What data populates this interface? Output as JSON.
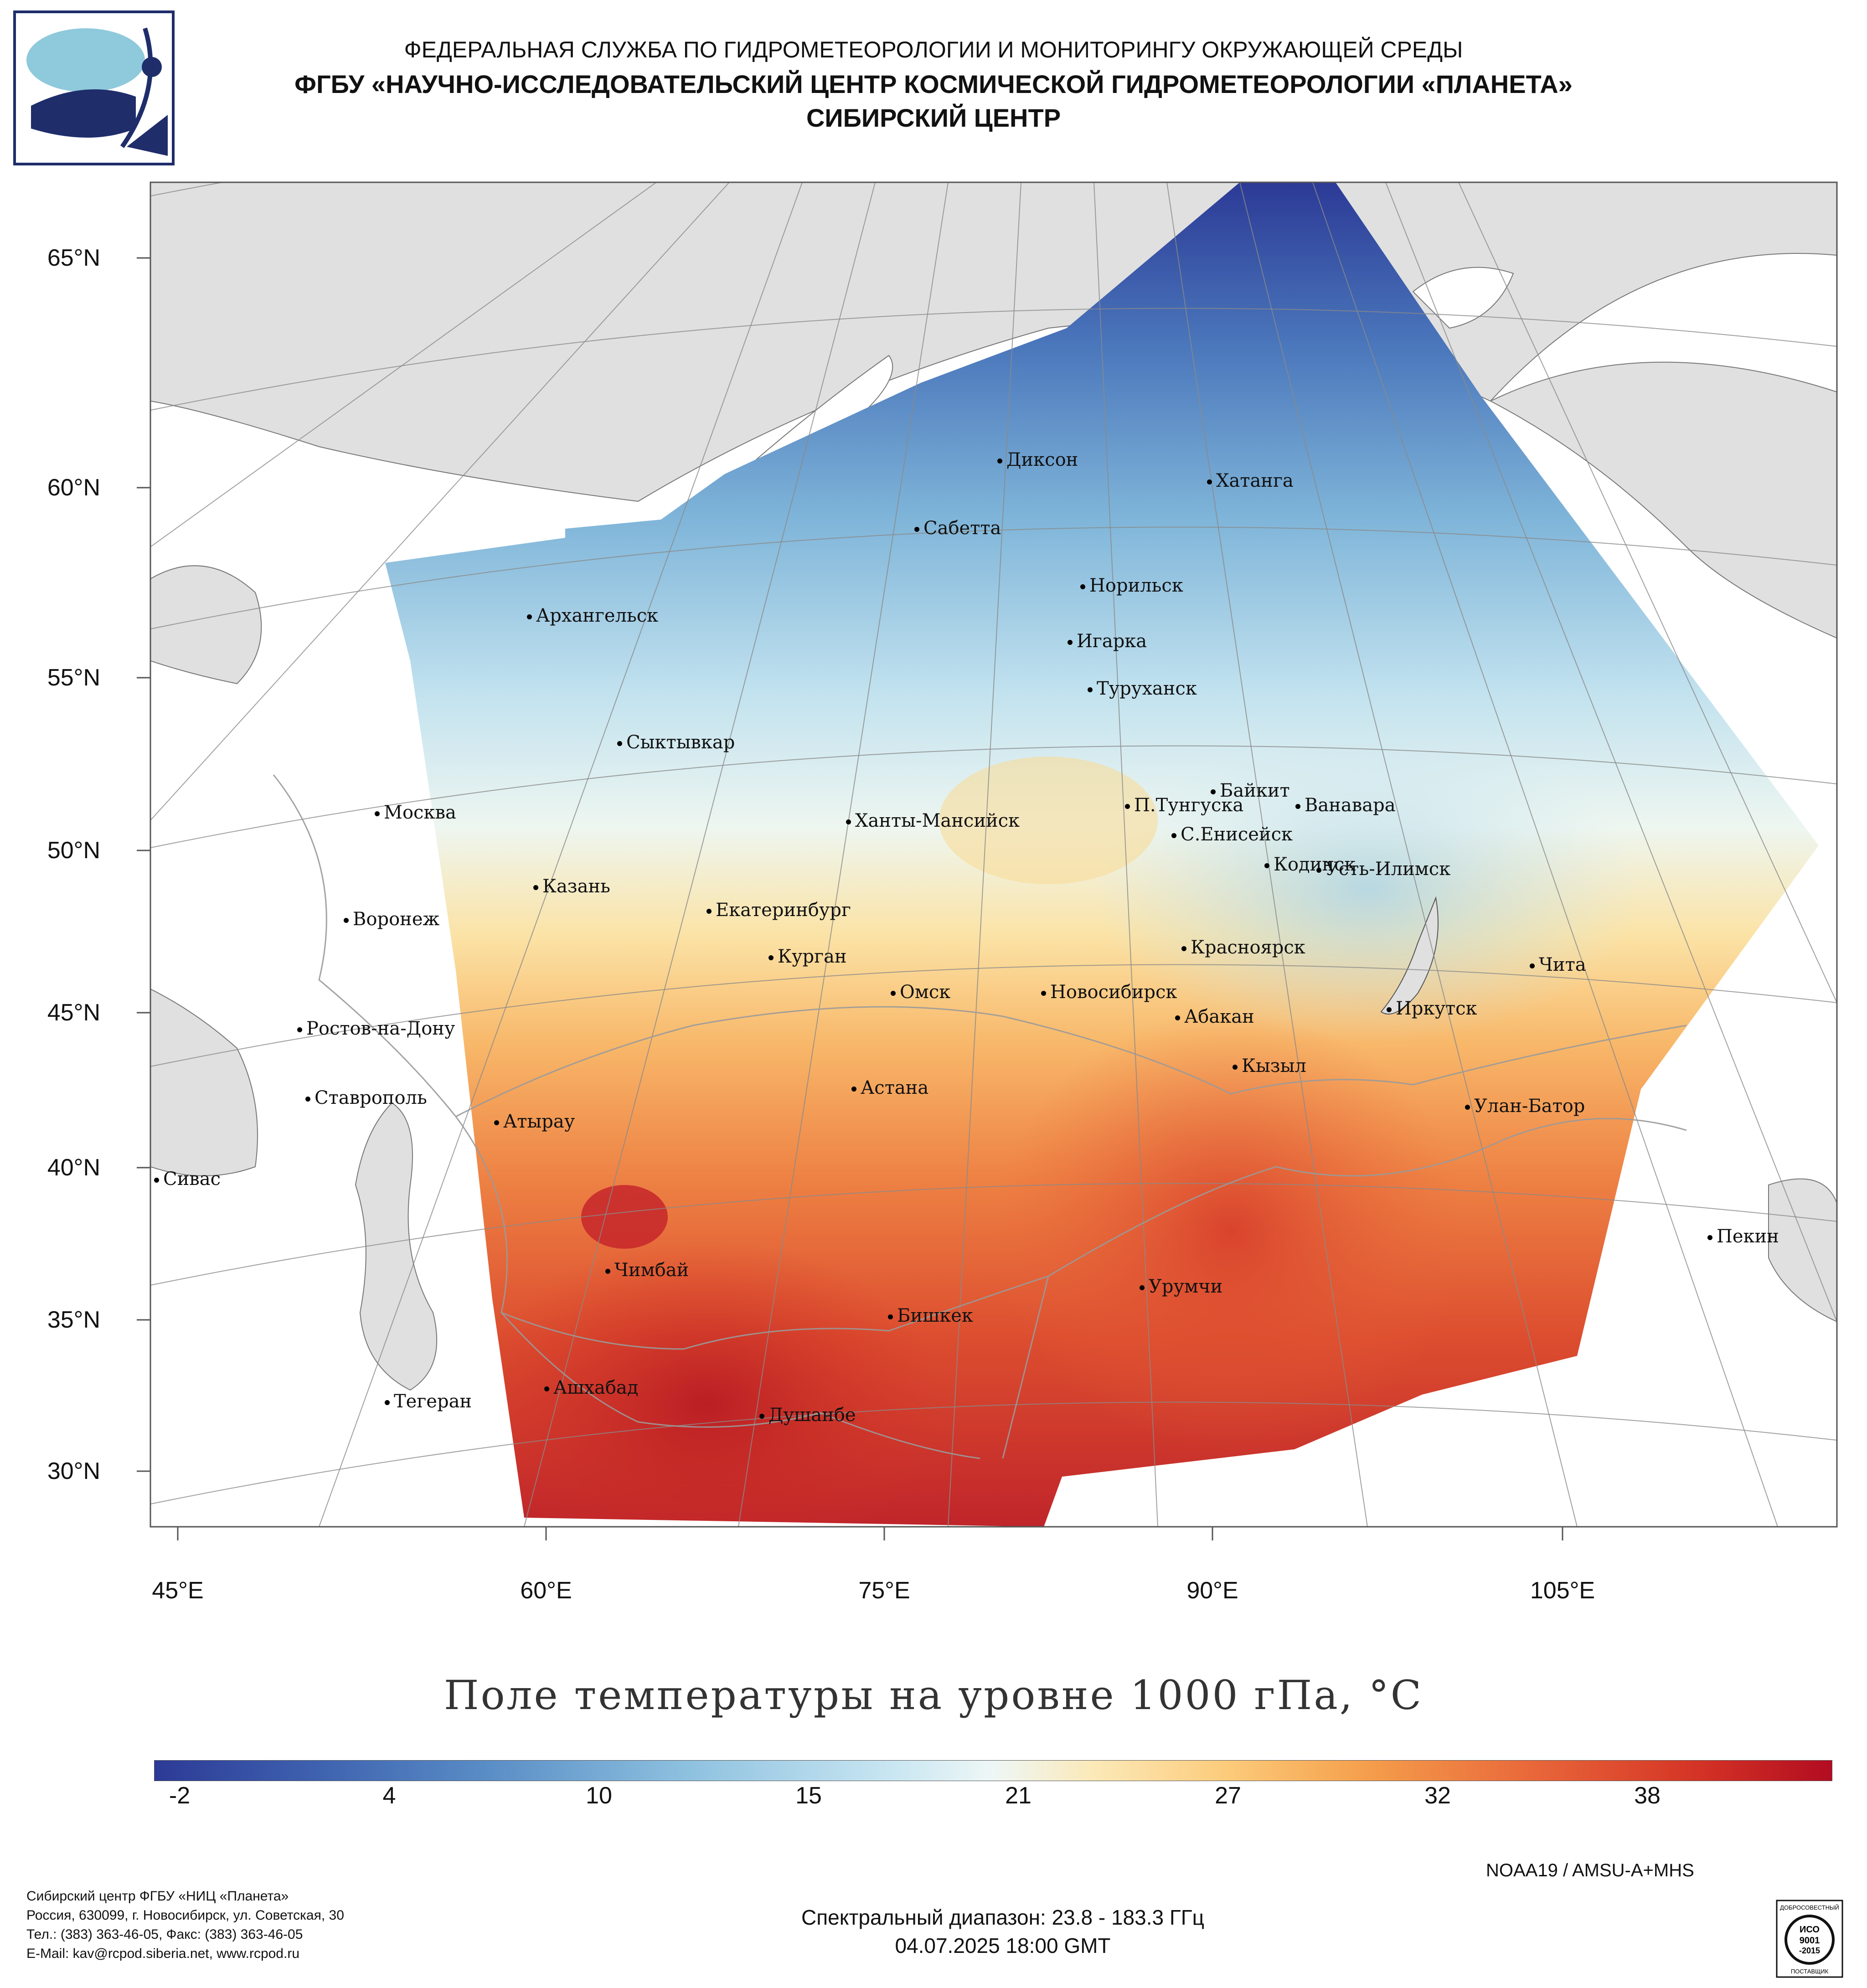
{
  "header": {
    "org": "ФЕДЕРАЛЬНАЯ СЛУЖБА ПО ГИДРОМЕТЕОРОЛОГИИ И МОНИТОРИНГУ ОКРУЖАЮЩЕЙ СРЕДЫ",
    "institution": "ФГБУ «НАУЧНО-ИССЛЕДОВАТЕЛЬСКИЙ ЦЕНТР КОСМИЧЕСКОЙ ГИДРОМЕТЕОРОЛОГИИ «ПЛАНЕТА»",
    "center": "СИБИРСКИЙ ЦЕНТР"
  },
  "axes": {
    "lat_labels": [
      "65°N",
      "60°N",
      "55°N",
      "50°N",
      "45°N",
      "40°N",
      "35°N",
      "30°N"
    ],
    "lon_labels": [
      "45°E",
      "60°E",
      "75°E",
      "90°E",
      "105°E"
    ]
  },
  "cities": [
    {
      "name": "Диксон"
    },
    {
      "name": "Хатанга"
    },
    {
      "name": "Сабетта"
    },
    {
      "name": "Норильск"
    },
    {
      "name": "Архангельск"
    },
    {
      "name": "Игарка"
    },
    {
      "name": "Туруханск"
    },
    {
      "name": "Сыктывкар"
    },
    {
      "name": "Байкит"
    },
    {
      "name": "П.Тунгуска"
    },
    {
      "name": "Ванавара"
    },
    {
      "name": "Москва"
    },
    {
      "name": "Ханты-Мансийск"
    },
    {
      "name": "С.Енисейск"
    },
    {
      "name": "Кодинск"
    },
    {
      "name": "Усть-Илимск"
    },
    {
      "name": "Казань"
    },
    {
      "name": "Екатеринбург"
    },
    {
      "name": "Воронеж"
    },
    {
      "name": "Красноярск"
    },
    {
      "name": "Курган"
    },
    {
      "name": "Чита"
    },
    {
      "name": "Омск"
    },
    {
      "name": "Новосибирск"
    },
    {
      "name": "Иркутск"
    },
    {
      "name": "Абакан"
    },
    {
      "name": "Ростов-на-Дону"
    },
    {
      "name": "Кызыл"
    },
    {
      "name": "Астана"
    },
    {
      "name": "Ставрополь"
    },
    {
      "name": "Улан-Батор"
    },
    {
      "name": "Атырау"
    },
    {
      "name": "Сивас"
    },
    {
      "name": "Пекин"
    },
    {
      "name": "Чимбай"
    },
    {
      "name": "Урумчи"
    },
    {
      "name": "Бишкек"
    },
    {
      "name": "Ашхабад"
    },
    {
      "name": "Тегеран"
    },
    {
      "name": "Душанбе"
    }
  ],
  "title": "Поле температуры на уровне 1000 гПа, °C",
  "colorbar": {
    "ticks": [
      "-2",
      "4",
      "10",
      "15",
      "21",
      "27",
      "32",
      "38"
    ],
    "colors": [
      "#2c3a96",
      "#5a8ec6",
      "#c9e6f2",
      "#eef7f6",
      "#fccb7a",
      "#e9683a",
      "#b20c21"
    ]
  },
  "sensor": "NOAA19 / AMSU-A+MHS",
  "footer": {
    "center_name": "Сибирский центр ФГБУ «НИЦ «Планета»",
    "address": "Россия, 630099, г. Новосибирск, ул. Советская, 30",
    "phones": "Тел.: (383) 363-46-05, Факс: (383) 363-46-05",
    "email": "E-Mail: kav@rcpod.siberia.net, www.rcpod.ru",
    "spectral": "Спектральный диапазон: 23.8 - 183.3 ГГц",
    "datetime": "04.07.2025 18:00 GMT"
  },
  "iso_badge": {
    "top": "ДОБРОСОВЕСТНЫЙ",
    "mid1": "ИСО",
    "mid2": "9001",
    "mid3": "-2015",
    "bottom": "ПОСТАВЩИК"
  }
}
